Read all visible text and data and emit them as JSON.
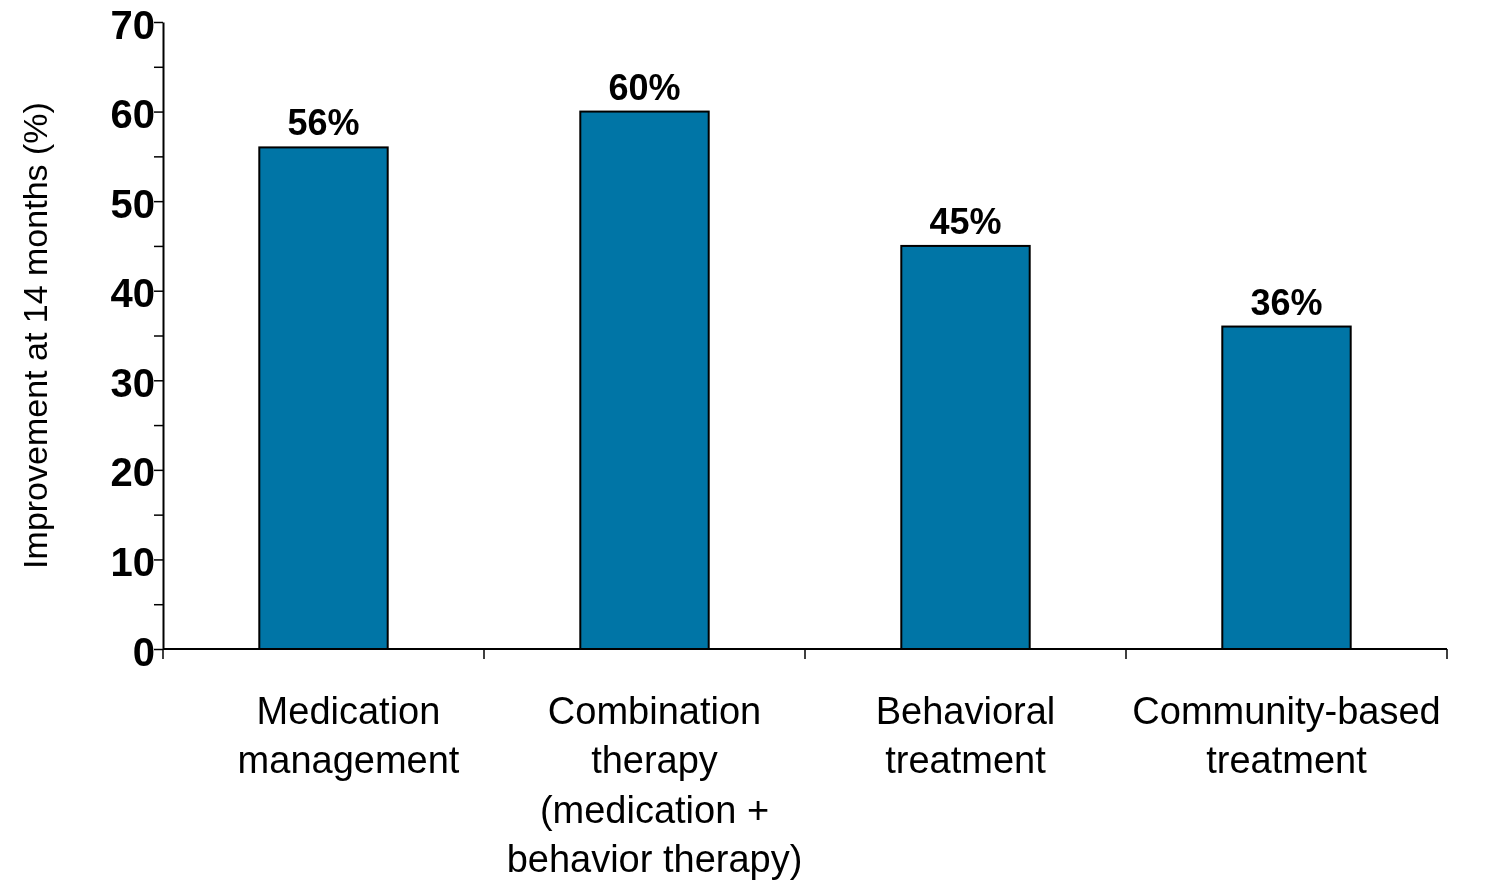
{
  "chart_data": {
    "type": "bar",
    "ylabel": "Improvement at 14 months (%)",
    "categories": [
      "Medication\nmanagement",
      "Combination\ntherapy\n(medication +\nbehavior therapy)",
      "Behavioral\ntreatment",
      "Community-based\ntreatment"
    ],
    "values": [
      56,
      60,
      45,
      36
    ],
    "color": "#0075a6",
    "value_labels": [
      "56%",
      "60%",
      "45%",
      "36%"
    ],
    "ylim": [
      0,
      70
    ],
    "yticks": [
      0,
      {
        "value": 5,
        "label": null
      },
      10,
      {
        "value": 15,
        "label": null
      },
      20,
      {
        "value": 25,
        "label": null
      },
      30,
      {
        "value": 35,
        "label": null
      },
      40,
      {
        "value": 45,
        "label": null
      },
      50,
      {
        "value": 55,
        "label": null
      },
      60,
      {
        "value": 65,
        "label": null
      },
      70
    ],
    "grid": false
  }
}
